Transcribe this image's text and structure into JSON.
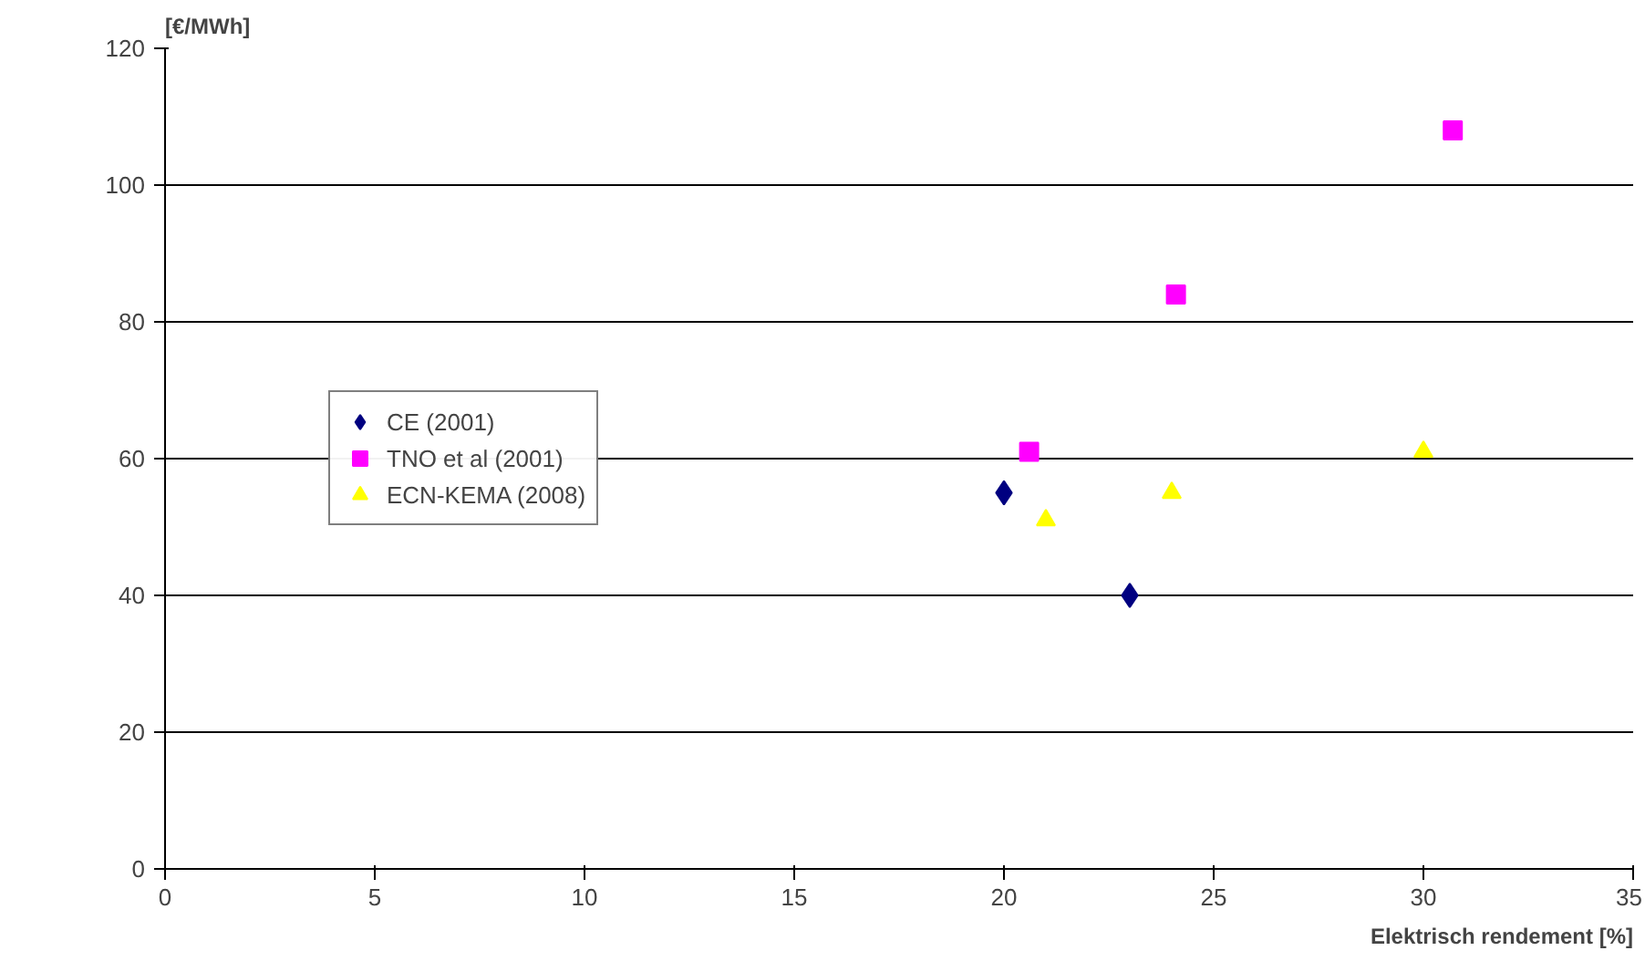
{
  "chart_data": {
    "type": "scatter",
    "xlabel": "Elektrisch rendement [%]",
    "ylabel": "[€/MWh]",
    "xlim": [
      0,
      35
    ],
    "xticks": [
      0,
      5,
      10,
      15,
      20,
      25,
      30,
      35
    ],
    "ylim": [
      0,
      120
    ],
    "yticks": [
      0,
      20,
      40,
      60,
      80,
      100,
      120
    ],
    "grid": "y",
    "legend": "left",
    "series": [
      {
        "name": "CE (2001)",
        "color": "#000080",
        "marker": "diamond",
        "x": [
          20,
          23
        ],
        "values": [
          55,
          40
        ]
      },
      {
        "name": "TNO et al (2001)",
        "color": "#ff00ff",
        "marker": "square",
        "x": [
          20.6,
          24.1,
          30.7
        ],
        "values": [
          61,
          84,
          108
        ]
      },
      {
        "name": "ECN-KEMA (2008)",
        "color": "#ffff00",
        "marker": "triangle",
        "x": [
          21,
          24,
          30
        ],
        "values": [
          51,
          55,
          61
        ]
      }
    ]
  }
}
